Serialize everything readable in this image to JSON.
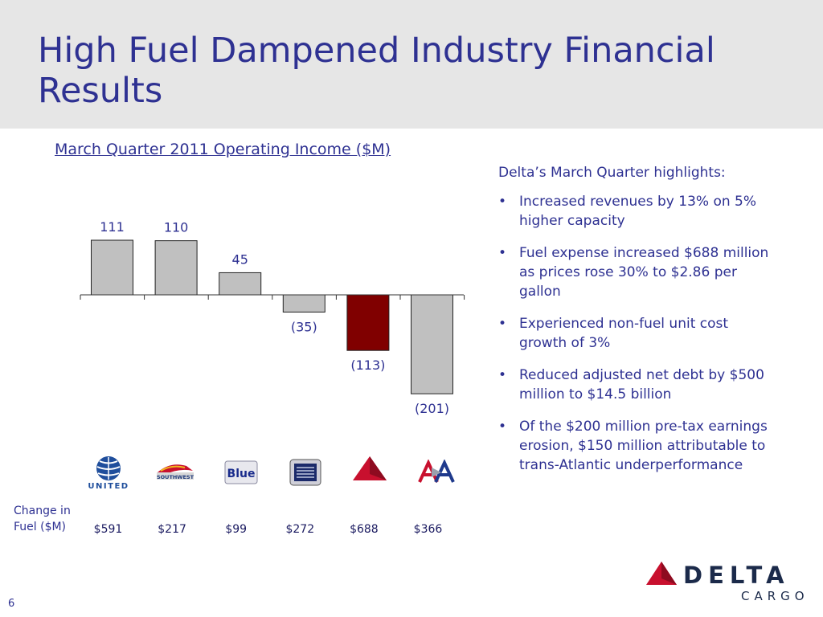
{
  "slide": {
    "title": "High Fuel Dampened Industry Financial Results",
    "page_number": "6"
  },
  "chart_data": {
    "type": "bar",
    "title": "March Quarter 2011 Operating Income ($M)",
    "categories": [
      "UNITED",
      "SOUTHWEST",
      "JetBlue",
      "US Airways",
      "Delta",
      "AA"
    ],
    "values": [
      111,
      110,
      45,
      -35,
      -113,
      -201
    ],
    "value_labels": [
      "111",
      "110",
      "45",
      "(35)",
      "(113)",
      "(201)"
    ],
    "highlight_index": 4,
    "colors": {
      "default": "#c0c0c0",
      "highlight": "#800000",
      "outline": "#222222"
    },
    "fuel_change_label": "Change in Fuel ($M)",
    "fuel_change": [
      "$591",
      "$217",
      "$99",
      "$272",
      "$688",
      "$366"
    ],
    "ylim": [
      -201,
      111
    ],
    "grid": false
  },
  "highlights": {
    "heading": "Delta’s March Quarter highlights:",
    "bullets": [
      "Increased revenues by 13% on 5% higher capacity",
      "Fuel expense increased $688 million as prices rose 30% to $2.86 per gallon",
      "Experienced non-fuel unit cost growth of 3%",
      "Reduced adjusted net debt by $500 million to $14.5 billion",
      "Of the $200 million pre-tax earnings erosion, $150 million attributable to trans-Atlantic underperformance"
    ]
  },
  "logos": {
    "united": "UNITED",
    "southwest": "SOUTHWEST",
    "jetblue": "Blue",
    "delta_word": "DELTA",
    "cargo_word": "CARGO"
  },
  "colors": {
    "title": "#2e3192",
    "header_bg": "#e6e6e6",
    "delta_red": "#c8102e",
    "delta_navy": "#1b2a4a"
  }
}
